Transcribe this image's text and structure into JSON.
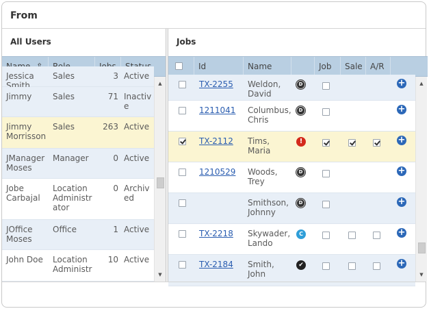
{
  "window": {
    "title": "From"
  },
  "left_panel": {
    "title": "All Users",
    "columns": {
      "name": "Name",
      "role": "Role",
      "jobs": "Jobs",
      "status": "Status"
    },
    "rows": [
      {
        "name": "Jessica\nSmith",
        "role": "Sales",
        "jobs": "3",
        "status": "Active",
        "style": "alt"
      },
      {
        "name": "Jimmy",
        "role": "Sales",
        "jobs": "71",
        "status": "Inactiv\ne",
        "style": "alt"
      },
      {
        "name": "Jimmy\nMorrisson",
        "role": "Sales",
        "jobs": "263",
        "status": "Active",
        "style": "sel"
      },
      {
        "name": "JManager\nMoses",
        "role": "Manager",
        "jobs": "0",
        "status": "Active",
        "style": "alt"
      },
      {
        "name": "Jobe\nCarbajal",
        "role": "Location\nAdministr\nator",
        "jobs": "0",
        "status": "Archiv\ned",
        "style": "white"
      },
      {
        "name": "JOffice\nMoses",
        "role": "Office",
        "jobs": "1",
        "status": "Active",
        "style": "alt"
      },
      {
        "name": "John Doe",
        "role": "Location\nAdministr",
        "jobs": "10",
        "status": "Active",
        "style": "white"
      }
    ]
  },
  "right_panel": {
    "title": "Jobs",
    "columns": {
      "id": "Id",
      "name": "Name",
      "job": "Job",
      "sale": "Sale",
      "ar": "A/R"
    },
    "rows": [
      {
        "id": "TX-2255",
        "name": "Weldon,\nDavid",
        "icon": "d",
        "icon_label": "D",
        "selected": false,
        "job": false,
        "sale": null,
        "ar": null,
        "style": "alt"
      },
      {
        "id": "1211041",
        "name": "Columbus,\nChris",
        "icon": "d",
        "icon_label": "D",
        "selected": false,
        "job": false,
        "sale": null,
        "ar": null,
        "style": "white"
      },
      {
        "id": "TX-2112",
        "name": "Tims,\nMaria",
        "icon": "warn",
        "icon_label": "!",
        "selected": true,
        "job": true,
        "sale": true,
        "ar": true,
        "style": "sel"
      },
      {
        "id": "1210529",
        "name": "Woods,\nTrey",
        "icon": "d",
        "icon_label": "D",
        "selected": false,
        "job": false,
        "sale": null,
        "ar": null,
        "style": "white"
      },
      {
        "id": "",
        "name": "Smithson,\nJohnny",
        "icon": "d",
        "icon_label": "D",
        "selected": false,
        "job": false,
        "sale": null,
        "ar": null,
        "style": "alt"
      },
      {
        "id": "TX-2218",
        "name": "Skywader,\nLando",
        "icon": "c",
        "icon_label": "C",
        "selected": false,
        "job": false,
        "sale": false,
        "ar": false,
        "style": "white"
      },
      {
        "id": "TX-2184",
        "name": "Smith,\nJohn",
        "icon": "ok",
        "icon_label": "✔",
        "selected": false,
        "job": false,
        "sale": false,
        "ar": false,
        "style": "alt"
      }
    ]
  },
  "icons": {
    "sort": "sort-arrow-icon",
    "add": "plus-circle-icon",
    "scroll_up": "scroll-up-arrow-icon",
    "scroll_down": "scroll-down-arrow-icon"
  },
  "colors": {
    "header": "#b9cfe2",
    "row_alt": "#e8eff7",
    "row_selected": "#fbf5d2",
    "link": "#2a5db0",
    "add": "#2c68b8",
    "warn": "#d42a1c",
    "complete": "#2f9ed8"
  }
}
